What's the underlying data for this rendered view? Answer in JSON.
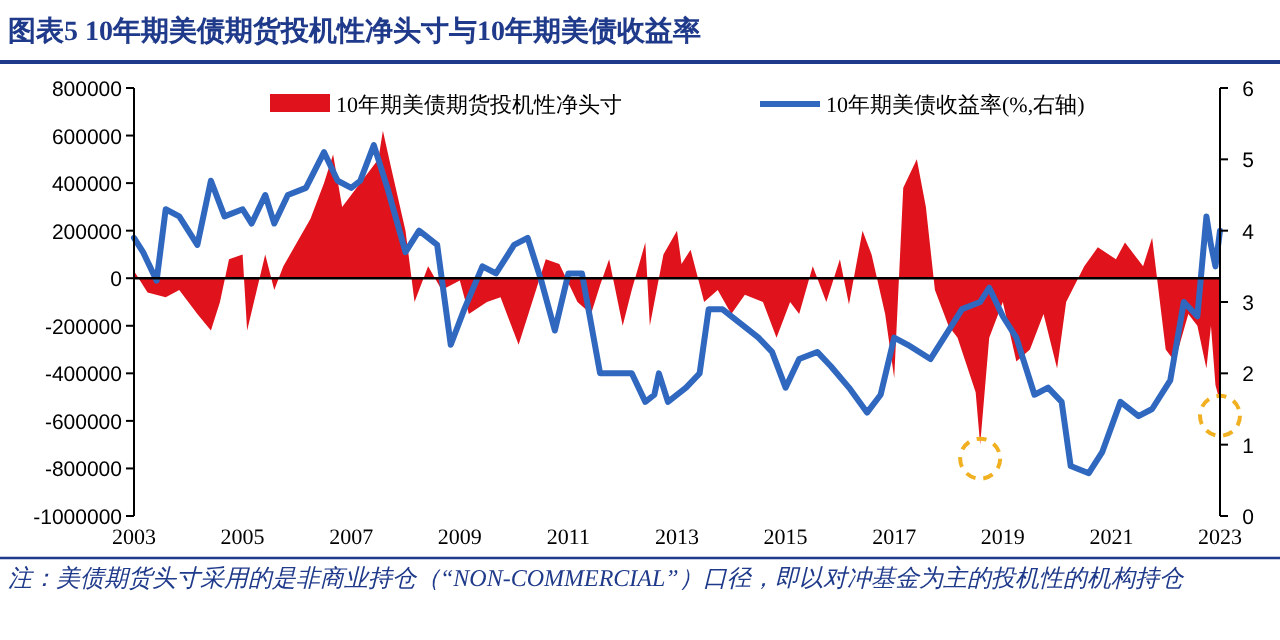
{
  "chart_data": {
    "type": "area",
    "title": "图表5 10年期美债期货投机性净头寸与10年期美债收益率",
    "xlim": [
      "2003",
      "2023"
    ],
    "xticks": [
      "2003",
      "2005",
      "2007",
      "2009",
      "2011",
      "2013",
      "2015",
      "2017",
      "2019",
      "2021",
      "2023"
    ],
    "ylim": [
      -1000000,
      800000
    ],
    "yticks": [
      -1000000,
      -800000,
      -600000,
      -400000,
      -200000,
      0,
      200000,
      400000,
      600000,
      800000
    ],
    "y2lim": [
      0,
      6
    ],
    "y2ticks": [
      0,
      1,
      2,
      3,
      4,
      5,
      6
    ],
    "legend": "top",
    "annotations": [
      "注：美债期货头寸采用的是非商业持仓（“NON-COMMERCIAL”）口径，即以对冲基金为主的投机性的机构持仓"
    ],
    "series": [
      {
        "name": "10年期美债期货投机性净头寸",
        "color": "#e0121b",
        "x": [
          "2003-01",
          "2003-04",
          "2003-08",
          "2003-11",
          "2004-03",
          "2004-06",
          "2004-08",
          "2004-10",
          "2005-01",
          "2005-02",
          "2005-06",
          "2005-08",
          "2005-10",
          "2006-01",
          "2006-04",
          "2006-07",
          "2006-09",
          "2006-11",
          "2007-03",
          "2007-07",
          "2007-08",
          "2007-10",
          "2008-01",
          "2008-03",
          "2008-06",
          "2008-09",
          "2009-01",
          "2009-03",
          "2009-07",
          "2009-10",
          "2010-02",
          "2010-05",
          "2010-08",
          "2010-11",
          "2011-03",
          "2011-06",
          "2011-08",
          "2011-10",
          "2012-01",
          "2012-03",
          "2012-06",
          "2012-07",
          "2012-08",
          "2012-10",
          "2013-01",
          "2013-02",
          "2013-04",
          "2013-07",
          "2013-10",
          "2014-01",
          "2014-04",
          "2014-08",
          "2014-11",
          "2015-02",
          "2015-04",
          "2015-07",
          "2015-10",
          "2016-01",
          "2016-03",
          "2016-06",
          "2016-08",
          "2016-11",
          "2017-01",
          "2017-03",
          "2017-06",
          "2017-08",
          "2017-10",
          "2018-01",
          "2018-03",
          "2018-07",
          "2018-08",
          "2018-10",
          "2019-01",
          "2019-04",
          "2019-07",
          "2019-10",
          "2020-01",
          "2020-03",
          "2020-07",
          "2020-10",
          "2021-02",
          "2021-04",
          "2021-08",
          "2021-10",
          "2022-01",
          "2022-03",
          "2022-06",
          "2022-08",
          "2022-10",
          "2022-11",
          "2022-12",
          "2023-01"
        ],
        "values": [
          30000,
          -60000,
          -80000,
          -50000,
          -150000,
          -220000,
          -100000,
          80000,
          100000,
          -220000,
          100000,
          -50000,
          50000,
          150000,
          250000,
          400000,
          520000,
          300000,
          400000,
          500000,
          620000,
          450000,
          200000,
          -100000,
          50000,
          -50000,
          -10000,
          -150000,
          -100000,
          -80000,
          -280000,
          -100000,
          80000,
          60000,
          -100000,
          -150000,
          -30000,
          80000,
          -200000,
          -50000,
          150000,
          -200000,
          -100000,
          100000,
          200000,
          60000,
          120000,
          -100000,
          -50000,
          -150000,
          -70000,
          -100000,
          -250000,
          -100000,
          -150000,
          50000,
          -100000,
          80000,
          -110000,
          200000,
          100000,
          -150000,
          -420000,
          380000,
          500000,
          300000,
          -50000,
          -200000,
          -250000,
          -480000,
          -700000,
          -250000,
          -100000,
          -350000,
          -300000,
          -150000,
          -380000,
          -100000,
          50000,
          130000,
          80000,
          150000,
          50000,
          170000,
          -300000,
          -350000,
          -150000,
          -200000,
          -380000,
          -200000,
          -450000,
          -520000
        ]
      },
      {
        "name": "10年期美债收益率(%,右轴)",
        "type": "line",
        "axis": "y2",
        "color": "#3068c0",
        "x": [
          "2003-01",
          "2003-03",
          "2003-06",
          "2003-08",
          "2003-11",
          "2004-03",
          "2004-06",
          "2004-09",
          "2005-01",
          "2005-03",
          "2005-06",
          "2005-08",
          "2005-11",
          "2006-03",
          "2006-07",
          "2006-10",
          "2007-01",
          "2007-03",
          "2007-06",
          "2007-09",
          "2008-01",
          "2008-04",
          "2008-08",
          "2008-11",
          "2009-02",
          "2009-06",
          "2009-09",
          "2010-01",
          "2010-04",
          "2010-07",
          "2010-10",
          "2011-01",
          "2011-04",
          "2011-08",
          "2011-10",
          "2012-03",
          "2012-06",
          "2012-08",
          "2012-09",
          "2012-11",
          "2013-03",
          "2013-06",
          "2013-08",
          "2013-11",
          "2014-03",
          "2014-07",
          "2014-10",
          "2015-01",
          "2015-04",
          "2015-08",
          "2015-11",
          "2016-03",
          "2016-07",
          "2016-10",
          "2017-01",
          "2017-04",
          "2017-09",
          "2018-01",
          "2018-04",
          "2018-08",
          "2018-10",
          "2019-01",
          "2019-04",
          "2019-08",
          "2019-11",
          "2020-02",
          "2020-04",
          "2020-08",
          "2020-11",
          "2021-03",
          "2021-07",
          "2021-10",
          "2022-02",
          "2022-05",
          "2022-08",
          "2022-10",
          "2022-11",
          "2022-12",
          "2023-01"
        ],
        "values": [
          3.9,
          3.7,
          3.3,
          4.3,
          4.2,
          3.8,
          4.7,
          4.2,
          4.3,
          4.1,
          4.5,
          4.1,
          4.5,
          4.6,
          5.1,
          4.7,
          4.6,
          4.7,
          5.2,
          4.6,
          3.7,
          4.0,
          3.8,
          2.4,
          2.9,
          3.5,
          3.4,
          3.8,
          3.9,
          3.3,
          2.6,
          3.4,
          3.4,
          2.0,
          2.0,
          2.0,
          1.6,
          1.7,
          2.0,
          1.6,
          1.8,
          2.0,
          2.9,
          2.9,
          2.7,
          2.5,
          2.3,
          1.8,
          2.2,
          2.3,
          2.1,
          1.8,
          1.45,
          1.7,
          2.5,
          2.4,
          2.2,
          2.6,
          2.9,
          3.0,
          3.2,
          2.8,
          2.5,
          1.7,
          1.8,
          1.6,
          0.7,
          0.6,
          0.9,
          1.6,
          1.4,
          1.5,
          1.9,
          3.0,
          2.8,
          4.2,
          3.8,
          3.5,
          4.0
        ]
      }
    ]
  }
}
